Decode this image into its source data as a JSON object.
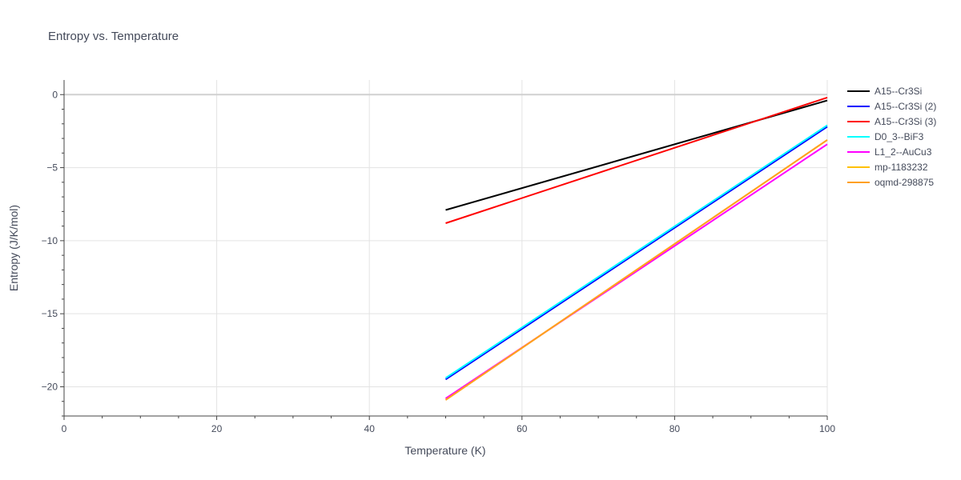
{
  "chart_data": {
    "type": "line",
    "title": "Entropy vs. Temperature",
    "xlabel": "Temperature (K)",
    "ylabel": "Entropy (J/K/mol)",
    "xlim": [
      0,
      100
    ],
    "ylim": [
      -22,
      1
    ],
    "x_ticks": [
      0,
      20,
      40,
      60,
      80,
      100
    ],
    "y_ticks": [
      0,
      -5,
      -10,
      -15,
      -20
    ],
    "x_tick_labels": [
      "0",
      "20",
      "40",
      "60",
      "80",
      "100"
    ],
    "y_tick_labels": [
      "0",
      "−5",
      "−10",
      "−15",
      "−20"
    ],
    "grid": true,
    "legend_position": "top-right",
    "series": [
      {
        "name": "A15--Cr3Si",
        "color": "#000000",
        "x": [
          50,
          100
        ],
        "y": [
          -7.9,
          -0.4
        ]
      },
      {
        "name": "A15--Cr3Si (2)",
        "color": "#0000ff",
        "x": [
          50,
          100
        ],
        "y": [
          -19.5,
          -2.2
        ]
      },
      {
        "name": "A15--Cr3Si (3)",
        "color": "#ff0000",
        "x": [
          50,
          100
        ],
        "y": [
          -8.8,
          -0.2
        ]
      },
      {
        "name": "D0_3--BiF3",
        "color": "#00ffff",
        "x": [
          50,
          100
        ],
        "y": [
          -19.4,
          -2.1
        ]
      },
      {
        "name": "L1_2--AuCu3",
        "color": "#ff00ff",
        "x": [
          50,
          100
        ],
        "y": [
          -20.8,
          -3.4
        ]
      },
      {
        "name": "mp-1183232",
        "color": "#ffc000",
        "x": [
          50,
          100
        ],
        "y": [
          -20.9,
          -3.1
        ]
      },
      {
        "name": "oqmd-298875",
        "color": "#ffa020",
        "x": [
          50,
          100
        ],
        "y": [
          -20.9,
          -3.1
        ]
      }
    ]
  }
}
